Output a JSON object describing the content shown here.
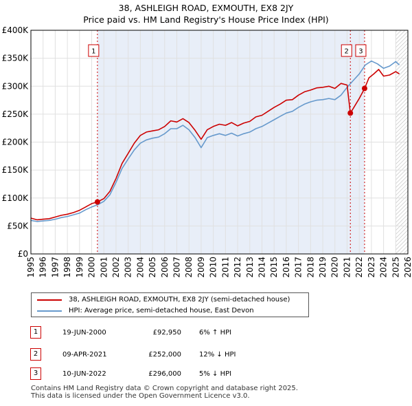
{
  "title_line1": "38, ASHLEIGH ROAD, EXMOUTH, EX8 2JY",
  "title_line2": "Price paid vs. HM Land Registry's House Price Index (HPI)",
  "colors": {
    "property": "#cc0000",
    "hpi": "#6699cc",
    "shade": "#e8eef8",
    "grid": "#e0e0e0",
    "forecast_hatch": "#bbbbbb"
  },
  "chart_data": {
    "type": "line",
    "title": "38, ASHLEIGH ROAD, EXMOUTH, EX8 2JY — Price paid vs. HM Land Registry's House Price Index (HPI)",
    "xlim": [
      1995,
      2026
    ],
    "ylim": [
      0,
      400000
    ],
    "x_ticks": [
      1995,
      1996,
      1997,
      1998,
      1999,
      2000,
      2001,
      2002,
      2003,
      2004,
      2005,
      2006,
      2007,
      2008,
      2009,
      2010,
      2011,
      2012,
      2013,
      2014,
      2015,
      2016,
      2017,
      2018,
      2019,
      2020,
      2021,
      2022,
      2023,
      2024,
      2025,
      2026
    ],
    "y_ticks": [
      0,
      50000,
      100000,
      150000,
      200000,
      250000,
      300000,
      350000,
      400000
    ],
    "y_tick_labels": [
      "£0",
      "£50K",
      "£100K",
      "£150K",
      "£200K",
      "£250K",
      "£300K",
      "£350K",
      "£400K"
    ],
    "shaded_region": [
      2000.47,
      2022.44
    ],
    "forecast_from": 2025.0,
    "series": [
      {
        "name": "38, ASHLEIGH ROAD, EXMOUTH, EX8 2JY (semi-detached house)",
        "x": [
          1995.0,
          1995.5,
          1996.0,
          1996.5,
          1997.0,
          1997.5,
          1998.0,
          1998.5,
          1999.0,
          1999.5,
          2000.0,
          2000.47,
          2001.0,
          2001.5,
          2002.0,
          2002.5,
          2003.0,
          2003.5,
          2004.0,
          2004.5,
          2005.0,
          2005.5,
          2006.0,
          2006.5,
          2007.0,
          2007.5,
          2008.0,
          2008.5,
          2009.0,
          2009.5,
          2010.0,
          2010.5,
          2011.0,
          2011.5,
          2012.0,
          2012.5,
          2013.0,
          2013.5,
          2014.0,
          2014.5,
          2015.0,
          2015.5,
          2016.0,
          2016.5,
          2017.0,
          2017.5,
          2018.0,
          2018.5,
          2019.0,
          2019.5,
          2020.0,
          2020.5,
          2021.0,
          2021.27,
          2021.5,
          2022.0,
          2022.44,
          2022.8,
          2023.2,
          2023.6,
          2024.0,
          2024.5,
          2025.0,
          2025.3
        ],
        "values": [
          64000,
          61000,
          62000,
          63000,
          66000,
          69000,
          71000,
          74000,
          78000,
          84000,
          90000,
          92950,
          99000,
          112000,
          135000,
          162000,
          180000,
          198000,
          212000,
          218000,
          220000,
          222000,
          228000,
          238000,
          236000,
          242000,
          235000,
          221000,
          205000,
          222000,
          228000,
          232000,
          230000,
          235000,
          229000,
          234000,
          237000,
          245000,
          248000,
          255000,
          262000,
          268000,
          275000,
          276000,
          284000,
          290000,
          293000,
          297000,
          298000,
          300000,
          296000,
          305000,
          302000,
          252000,
          260000,
          278000,
          296000,
          315000,
          322000,
          330000,
          318000,
          320000,
          326000,
          322000
        ]
      },
      {
        "name": "HPI: Average price, semi-detached house, East Devon",
        "x": [
          1995.0,
          1995.5,
          1996.0,
          1996.5,
          1997.0,
          1997.5,
          1998.0,
          1998.5,
          1999.0,
          1999.5,
          2000.0,
          2000.5,
          2001.0,
          2001.5,
          2002.0,
          2002.5,
          2003.0,
          2003.5,
          2004.0,
          2004.5,
          2005.0,
          2005.5,
          2006.0,
          2006.5,
          2007.0,
          2007.5,
          2008.0,
          2008.5,
          2009.0,
          2009.5,
          2010.0,
          2010.5,
          2011.0,
          2011.5,
          2012.0,
          2012.5,
          2013.0,
          2013.5,
          2014.0,
          2014.5,
          2015.0,
          2015.5,
          2016.0,
          2016.5,
          2017.0,
          2017.5,
          2018.0,
          2018.5,
          2019.0,
          2019.5,
          2020.0,
          2020.5,
          2021.0,
          2021.5,
          2022.0,
          2022.5,
          2023.0,
          2023.5,
          2024.0,
          2024.5,
          2025.0,
          2025.3
        ],
        "values": [
          60000,
          58000,
          59000,
          60000,
          62000,
          65000,
          67000,
          70000,
          73000,
          79000,
          84000,
          88000,
          94000,
          106000,
          128000,
          153000,
          170000,
          186000,
          198000,
          204000,
          207000,
          209000,
          215000,
          224000,
          224000,
          230000,
          222000,
          208000,
          190000,
          208000,
          212000,
          215000,
          212000,
          216000,
          211000,
          215000,
          218000,
          224000,
          228000,
          234000,
          240000,
          246000,
          252000,
          255000,
          262000,
          268000,
          272000,
          275000,
          276000,
          278000,
          276000,
          284000,
          298000,
          310000,
          322000,
          338000,
          345000,
          340000,
          332000,
          336000,
          344000,
          338000
        ]
      }
    ],
    "sales": [
      {
        "label": "1",
        "x": 2000.47,
        "value": 92950
      },
      {
        "label": "2",
        "x": 2021.27,
        "value": 252000
      },
      {
        "label": "3",
        "x": 2022.44,
        "value": 296000
      }
    ]
  },
  "legend": {
    "property_label": "38, ASHLEIGH ROAD, EXMOUTH, EX8 2JY (semi-detached house)",
    "hpi_label": "HPI: Average price, semi-detached house, East Devon"
  },
  "sales_table": [
    {
      "num": "1",
      "date": "19-JUN-2000",
      "price": "£92,950",
      "hpi": "6% ↑ HPI"
    },
    {
      "num": "2",
      "date": "09-APR-2021",
      "price": "£252,000",
      "hpi": "12% ↓ HPI"
    },
    {
      "num": "3",
      "date": "10-JUN-2022",
      "price": "£296,000",
      "hpi": "5% ↓ HPI"
    }
  ],
  "footer": {
    "line1": "Contains HM Land Registry data © Crown copyright and database right 2025.",
    "line2": "This data is licensed under the Open Government Licence v3.0."
  }
}
